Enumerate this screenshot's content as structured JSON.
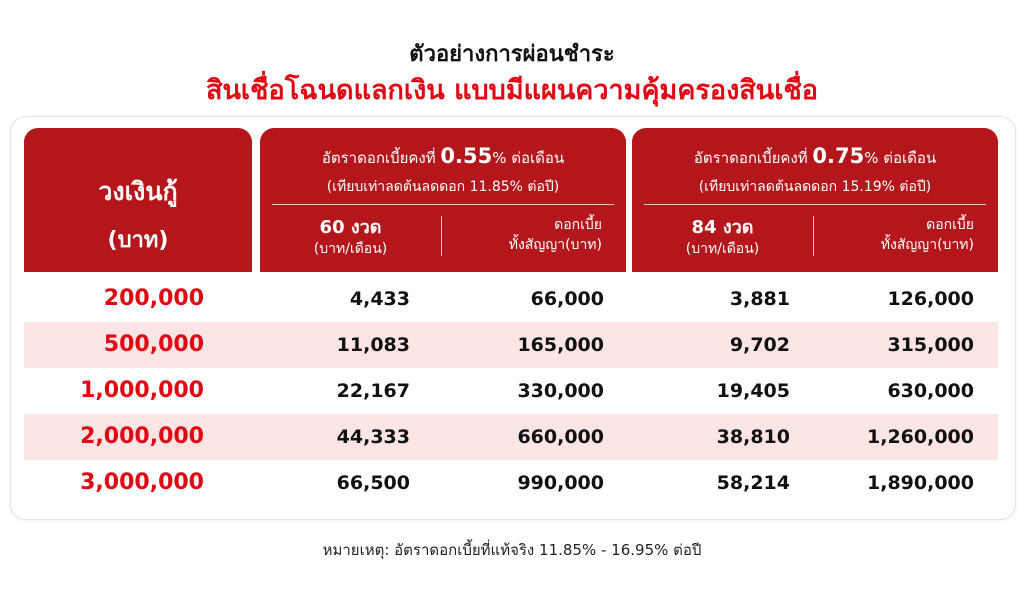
{
  "header": {
    "title": "ตัวอย่างการผ่อนชำระ",
    "subtitle": "สินเชื่อโฉนดแลกเงิน แบบมีแผนความคุ้มครองสินเชื่อ"
  },
  "table": {
    "loan_col": {
      "label_line1": "วงเงินกู้",
      "label_line2": "(บาท)"
    },
    "groups": [
      {
        "rate_prefix": "อัตราดอกเบี้ยคงที่ ",
        "rate_value": "0.55",
        "rate_suffix": "% ต่อเดือน",
        "equivalent": "(เทียบเท่าลดต้นลดดอก 11.85% ต่อปี)",
        "monthly_label_top": "60 งวด",
        "monthly_label_bottom": "(บาท/เดือน)",
        "interest_label_top": "ดอกเบี้ย",
        "interest_label_bottom": "ทั้งสัญญา(บาท)"
      },
      {
        "rate_prefix": "อัตราดอกเบี้ยคงที่ ",
        "rate_value": "0.75",
        "rate_suffix": "% ต่อเดือน",
        "equivalent": "(เทียบเท่าลดต้นลดดอก 15.19% ต่อปี)",
        "monthly_label_top": "84 งวด",
        "monthly_label_bottom": "(บาท/เดือน)",
        "interest_label_top": "ดอกเบี้ย",
        "interest_label_bottom": "ทั้งสัญญา(บาท)"
      }
    ],
    "rows": [
      {
        "loan": "200,000",
        "m60": "4,433",
        "i60": "66,000",
        "m84": "3,881",
        "i84": "126,000"
      },
      {
        "loan": "500,000",
        "m60": "11,083",
        "i60": "165,000",
        "m84": "9,702",
        "i84": "315,000"
      },
      {
        "loan": "1,000,000",
        "m60": "22,167",
        "i60": "330,000",
        "m84": "19,405",
        "i84": "630,000"
      },
      {
        "loan": "2,000,000",
        "m60": "44,333",
        "i60": "660,000",
        "m84": "38,810",
        "i84": "1,260,000"
      },
      {
        "loan": "3,000,000",
        "m60": "66,500",
        "i60": "990,000",
        "m84": "58,214",
        "i84": "1,890,000"
      }
    ]
  },
  "footnote": "หมายเหตุ: อัตราดอกเบี้ยที่แท้จริง 11.85% - 16.95% ต่อปี",
  "colors": {
    "accent_red": "#e10613",
    "header_bg": "#b5161b",
    "alt_row_bg": "#fde5e6"
  }
}
